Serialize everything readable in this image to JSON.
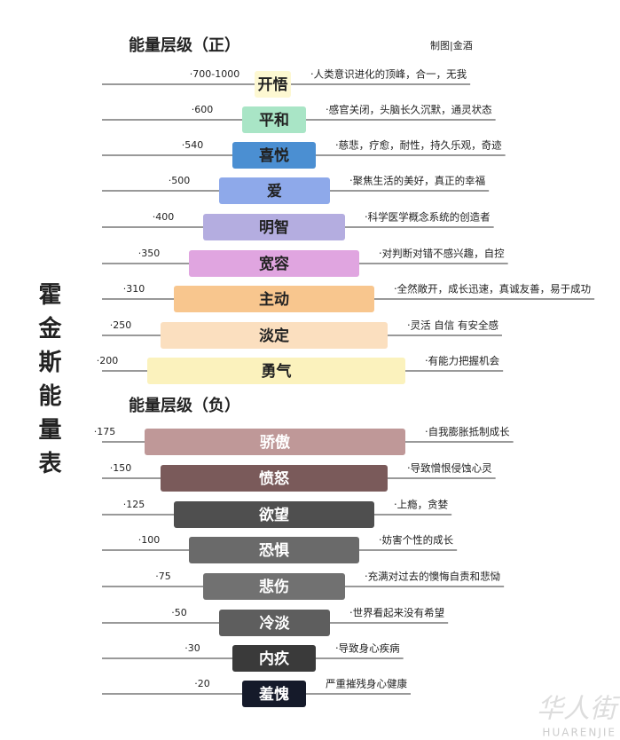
{
  "header": {
    "title": "霍金斯能量表",
    "credit": "制图|金酒"
  },
  "positive": {
    "title": "能量层级（正）",
    "rows": [
      {
        "level": "·700-1000",
        "name": "开悟",
        "description": "·人类意识进化的顶峰，合一，无我"
      },
      {
        "level": "·600",
        "name": "平和",
        "description": "·感官关闭，头脑长久沉默，通灵状态"
      },
      {
        "level": "·540",
        "name": "喜悦",
        "description": "·慈悲，疗愈，耐性，持久乐观，奇迹"
      },
      {
        "level": "·500",
        "name": "爱",
        "description": "·聚焦生活的美好，真正的幸福"
      },
      {
        "level": "·400",
        "name": "明智",
        "description": "·科学医学概念系统的创造者"
      },
      {
        "level": "·350",
        "name": "宽容",
        "description": "·对判断对错不感兴趣，自控"
      },
      {
        "level": "·310",
        "name": "主动",
        "description": "·全然敞开，成长迅速，真诚友善，易于成功"
      },
      {
        "level": "·250",
        "name": "淡定",
        "description": "·灵活 自信 有安全感"
      },
      {
        "level": "·200",
        "name": "勇气",
        "description": "·有能力把握机会"
      }
    ]
  },
  "negative": {
    "title": "能量层级（负）",
    "rows": [
      {
        "level": "·175",
        "name": "骄傲",
        "description": "·自我膨胀抵制成长"
      },
      {
        "level": "·150",
        "name": "愤怒",
        "description": "·导致憎恨侵蚀心灵"
      },
      {
        "level": "·125",
        "name": "欲望",
        "description": "·上瘾，贪婪"
      },
      {
        "level": "·100",
        "name": "恐惧",
        "description": "·妨害个性的成长"
      },
      {
        "level": "·75",
        "name": "悲伤",
        "description": "·充满对过去的懊悔自责和悲恸"
      },
      {
        "level": "·50",
        "name": "冷淡",
        "description": "·世界看起来没有希望"
      },
      {
        "level": "·30",
        "name": "内疚",
        "description": "·导致身心疾病"
      },
      {
        "level": "·20",
        "name": "羞愧",
        "description": "严重摧残身心健康"
      }
    ]
  },
  "watermark": {
    "logo": "华人街",
    "text": "HUARENJIE"
  }
}
